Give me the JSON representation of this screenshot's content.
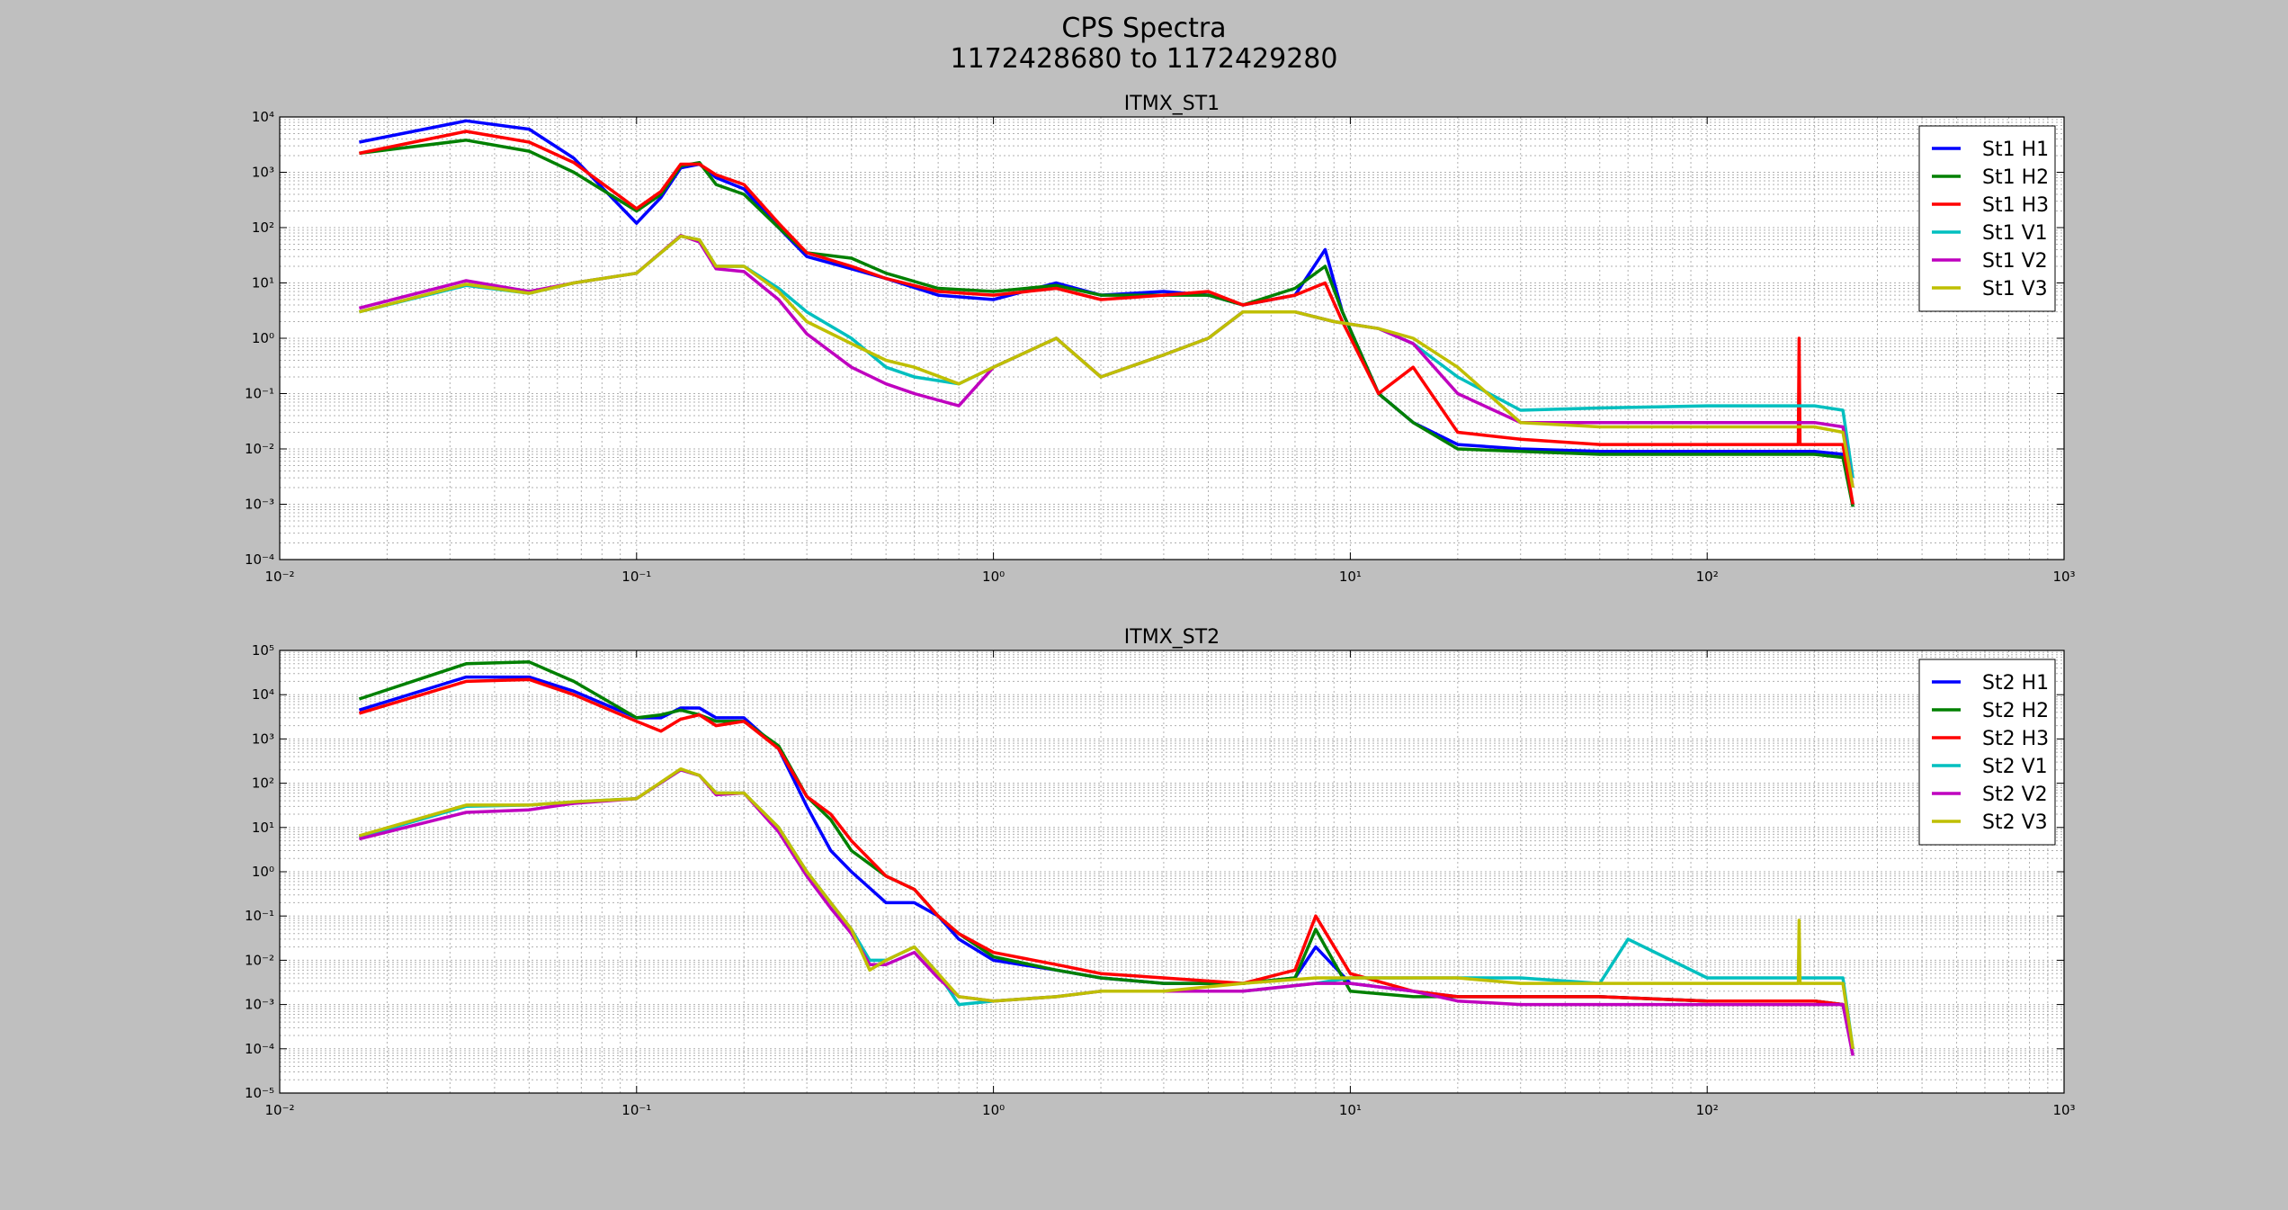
{
  "figure": {
    "title_line1": "CPS Spectra",
    "title_line2": "1172428680 to 1172429280"
  },
  "chart_data": [
    {
      "type": "line",
      "title": "ITMX_ST1",
      "xscale": "log",
      "yscale": "log",
      "xlim": [
        0.01,
        1000
      ],
      "ylim": [
        0.0001,
        10000
      ],
      "x_ticks": [
        "10⁻²",
        "10⁻¹",
        "10⁰",
        "10¹",
        "10²",
        "10³"
      ],
      "y_ticks": [
        "10⁴",
        "10³",
        "10²",
        "10¹",
        "10⁰",
        "10⁻¹",
        "10⁻²",
        "10⁻³",
        "10⁻⁴"
      ],
      "grid": true,
      "legend_position": "top-right",
      "series": [
        {
          "name": "St1 H1",
          "color": "#0000ff",
          "x": [
            0.0167,
            0.0333,
            0.05,
            0.0667,
            0.1,
            0.117,
            0.133,
            0.15,
            0.167,
            0.2,
            0.25,
            0.3,
            0.4,
            0.5,
            0.7,
            1.0,
            1.5,
            2.0,
            3.0,
            4.0,
            5.0,
            7.0,
            8.5,
            9.5,
            12.0,
            15.0,
            20.0,
            30.0,
            50.0,
            100.0,
            200.0,
            240.0,
            256.0
          ],
          "y": [
            3500,
            8500,
            6000,
            1800,
            120,
            350,
            1200,
            1400,
            800,
            500,
            100,
            30,
            18,
            12,
            6,
            5,
            10,
            6,
            7,
            6,
            4,
            6,
            40,
            3,
            0.1,
            0.03,
            0.012,
            0.01,
            0.009,
            0.009,
            0.009,
            0.008,
            0.001
          ]
        },
        {
          "name": "St1 H2",
          "color": "#008000",
          "x": [
            0.0167,
            0.0333,
            0.05,
            0.0667,
            0.1,
            0.117,
            0.133,
            0.15,
            0.167,
            0.2,
            0.25,
            0.3,
            0.4,
            0.5,
            0.7,
            1.0,
            1.5,
            2.0,
            3.0,
            4.0,
            5.0,
            7.0,
            8.5,
            9.5,
            12.0,
            15.0,
            20.0,
            30.0,
            50.0,
            100.0,
            200.0,
            240.0,
            256.0
          ],
          "y": [
            2200,
            3800,
            2400,
            1000,
            200,
            400,
            1300,
            1500,
            600,
            400,
            100,
            35,
            28,
            15,
            8,
            7,
            9,
            6,
            6,
            6,
            4,
            8,
            20,
            3,
            0.1,
            0.03,
            0.01,
            0.009,
            0.008,
            0.008,
            0.008,
            0.007,
            0.0009
          ]
        },
        {
          "name": "St1 H3",
          "color": "#ff0000",
          "x": [
            0.0167,
            0.0333,
            0.05,
            0.0667,
            0.1,
            0.117,
            0.133,
            0.15,
            0.167,
            0.2,
            0.25,
            0.3,
            0.4,
            0.5,
            0.7,
            1.0,
            1.5,
            2.0,
            3.0,
            4.0,
            5.0,
            7.0,
            8.5,
            9.5,
            12.0,
            15.0,
            20.0,
            30.0,
            50.0,
            100.0,
            180.0,
            181.0,
            182.0,
            240.0,
            256.0
          ],
          "y": [
            2200,
            5500,
            3500,
            1500,
            220,
            450,
            1400,
            1400,
            900,
            600,
            120,
            35,
            20,
            12,
            7,
            6,
            8,
            5,
            6,
            7,
            4,
            6,
            10,
            2,
            0.1,
            0.3,
            0.02,
            0.015,
            0.012,
            0.012,
            0.012,
            1.0,
            0.012,
            0.012,
            0.001
          ]
        },
        {
          "name": "St1 V1",
          "color": "#00bfbf",
          "x": [
            0.0167,
            0.0333,
            0.05,
            0.0667,
            0.1,
            0.133,
            0.15,
            0.167,
            0.2,
            0.25,
            0.3,
            0.4,
            0.5,
            0.6,
            0.8,
            1.0,
            1.5,
            2.0,
            3.0,
            4.0,
            5.0,
            7.0,
            9.0,
            12.0,
            15.0,
            20.0,
            30.0,
            50.0,
            100.0,
            200.0,
            240.0,
            256.0
          ],
          "y": [
            3.0,
            9.0,
            6.5,
            10,
            15,
            70,
            60,
            20,
            20,
            8,
            3,
            1,
            0.3,
            0.2,
            0.15,
            0.3,
            1.0,
            0.2,
            0.5,
            1.0,
            3.0,
            3.0,
            2.0,
            1.5,
            0.8,
            0.2,
            0.05,
            0.055,
            0.06,
            0.06,
            0.05,
            0.003
          ]
        },
        {
          "name": "St1 V2",
          "color": "#bf00bf",
          "x": [
            0.0167,
            0.0333,
            0.05,
            0.0667,
            0.1,
            0.133,
            0.15,
            0.167,
            0.2,
            0.25,
            0.3,
            0.4,
            0.5,
            0.6,
            0.8,
            1.0,
            1.5,
            2.0,
            3.0,
            4.0,
            5.0,
            7.0,
            9.0,
            12.0,
            15.0,
            20.0,
            30.0,
            50.0,
            100.0,
            200.0,
            240.0,
            256.0
          ],
          "y": [
            3.5,
            11,
            7.0,
            10,
            15,
            72,
            55,
            18,
            16,
            5,
            1.2,
            0.3,
            0.15,
            0.1,
            0.06,
            0.3,
            1.0,
            0.2,
            0.5,
            1.0,
            3.0,
            3.0,
            2.0,
            1.5,
            0.8,
            0.1,
            0.03,
            0.03,
            0.03,
            0.03,
            0.025,
            0.002
          ]
        },
        {
          "name": "St1 V3",
          "color": "#bfbf00",
          "x": [
            0.0167,
            0.0333,
            0.05,
            0.0667,
            0.1,
            0.133,
            0.15,
            0.167,
            0.2,
            0.25,
            0.3,
            0.4,
            0.5,
            0.6,
            0.8,
            1.0,
            1.5,
            2.0,
            3.0,
            4.0,
            5.0,
            7.0,
            9.0,
            12.0,
            15.0,
            20.0,
            30.0,
            50.0,
            100.0,
            200.0,
            240.0,
            256.0
          ],
          "y": [
            3.0,
            9.5,
            6.5,
            10,
            15,
            70,
            60,
            20,
            20,
            7,
            2,
            0.8,
            0.4,
            0.3,
            0.15,
            0.3,
            1.0,
            0.2,
            0.5,
            1.0,
            3.0,
            3.0,
            2.0,
            1.5,
            1.0,
            0.3,
            0.03,
            0.025,
            0.025,
            0.025,
            0.02,
            0.002
          ]
        }
      ]
    },
    {
      "type": "line",
      "title": "ITMX_ST2",
      "xscale": "log",
      "yscale": "log",
      "xlim": [
        0.01,
        1000
      ],
      "ylim": [
        1e-05,
        100000
      ],
      "x_ticks": [
        "10⁻²",
        "10⁻¹",
        "10⁰",
        "10¹",
        "10²",
        "10³"
      ],
      "y_ticks": [
        "10⁵",
        "10⁴",
        "10³",
        "10²",
        "10¹",
        "10⁰",
        "10⁻¹",
        "10⁻²",
        "10⁻³",
        "10⁻⁴",
        "10⁻⁵"
      ],
      "grid": true,
      "legend_position": "top-right",
      "series": [
        {
          "name": "St2 H1",
          "color": "#0000ff",
          "x": [
            0.0167,
            0.0333,
            0.05,
            0.0667,
            0.1,
            0.117,
            0.133,
            0.15,
            0.167,
            0.2,
            0.25,
            0.3,
            0.35,
            0.4,
            0.5,
            0.6,
            0.7,
            0.8,
            1.0,
            1.5,
            2.0,
            3.0,
            5.0,
            7.0,
            8.0,
            10.0,
            15.0,
            20.0,
            30.0,
            50.0,
            100.0,
            200.0,
            240.0,
            256.0
          ],
          "y": [
            4500,
            25000,
            25000,
            12000,
            3000,
            3000,
            5000,
            5000,
            3000,
            3000,
            600,
            30,
            3,
            1,
            0.2,
            0.2,
            0.1,
            0.03,
            0.01,
            0.006,
            0.004,
            0.003,
            0.003,
            0.004,
            0.02,
            0.003,
            0.002,
            0.0015,
            0.0015,
            0.0015,
            0.0012,
            0.0012,
            0.001,
            0.0001
          ]
        },
        {
          "name": "St2 H2",
          "color": "#008000",
          "x": [
            0.0167,
            0.0333,
            0.05,
            0.0667,
            0.1,
            0.117,
            0.133,
            0.15,
            0.167,
            0.2,
            0.25,
            0.3,
            0.35,
            0.4,
            0.5,
            0.6,
            0.7,
            0.8,
            1.0,
            1.5,
            2.0,
            3.0,
            5.0,
            7.0,
            8.0,
            10.0,
            15.0,
            20.0,
            30.0,
            50.0,
            100.0,
            200.0,
            240.0,
            256.0
          ],
          "y": [
            8000,
            50000,
            55000,
            20000,
            3000,
            3500,
            4500,
            3500,
            2500,
            2500,
            700,
            50,
            15,
            3,
            0.8,
            0.4,
            0.1,
            0.04,
            0.012,
            0.006,
            0.004,
            0.003,
            0.003,
            0.004,
            0.05,
            0.002,
            0.0015,
            0.0015,
            0.0015,
            0.0015,
            0.0012,
            0.0012,
            0.001,
            0.0001
          ]
        },
        {
          "name": "St2 H3",
          "color": "#ff0000",
          "x": [
            0.0167,
            0.0333,
            0.05,
            0.0667,
            0.1,
            0.117,
            0.133,
            0.15,
            0.167,
            0.2,
            0.25,
            0.3,
            0.35,
            0.4,
            0.5,
            0.6,
            0.7,
            0.8,
            1.0,
            1.5,
            2.0,
            3.0,
            5.0,
            7.0,
            8.0,
            10.0,
            15.0,
            20.0,
            30.0,
            50.0,
            100.0,
            200.0,
            240.0,
            256.0
          ],
          "y": [
            3800,
            20000,
            22000,
            10000,
            2500,
            1500,
            2800,
            3500,
            2000,
            2500,
            600,
            50,
            20,
            5,
            0.8,
            0.4,
            0.1,
            0.04,
            0.015,
            0.008,
            0.005,
            0.004,
            0.003,
            0.006,
            0.1,
            0.005,
            0.002,
            0.0015,
            0.0015,
            0.0015,
            0.0012,
            0.0012,
            0.001,
            0.0001
          ]
        },
        {
          "name": "St2 V1",
          "color": "#00bfbf",
          "x": [
            0.0167,
            0.0333,
            0.05,
            0.0667,
            0.1,
            0.133,
            0.15,
            0.167,
            0.2,
            0.25,
            0.3,
            0.35,
            0.4,
            0.45,
            0.5,
            0.6,
            0.7,
            0.8,
            1.0,
            1.5,
            2.0,
            3.0,
            5.0,
            8.0,
            10.0,
            15.0,
            20.0,
            30.0,
            50.0,
            60.0,
            100.0,
            200.0,
            240.0,
            256.0
          ],
          "y": [
            6.0,
            30,
            32,
            38,
            45,
            200,
            150,
            60,
            60,
            10,
            1,
            0.2,
            0.05,
            0.01,
            0.01,
            0.02,
            0.005,
            0.001,
            0.0012,
            0.0015,
            0.002,
            0.002,
            0.002,
            0.003,
            0.004,
            0.004,
            0.004,
            0.004,
            0.003,
            0.03,
            0.004,
            0.004,
            0.004,
            0.0001
          ]
        },
        {
          "name": "St2 V2",
          "color": "#bf00bf",
          "x": [
            0.0167,
            0.0333,
            0.05,
            0.0667,
            0.1,
            0.133,
            0.15,
            0.167,
            0.2,
            0.25,
            0.3,
            0.35,
            0.4,
            0.45,
            0.5,
            0.6,
            0.7,
            0.8,
            1.0,
            1.5,
            2.0,
            3.0,
            5.0,
            8.0,
            10.0,
            15.0,
            20.0,
            30.0,
            50.0,
            100.0,
            200.0,
            240.0,
            256.0
          ],
          "y": [
            5.5,
            22,
            25,
            35,
            45,
            200,
            150,
            55,
            60,
            8,
            0.8,
            0.15,
            0.04,
            0.008,
            0.008,
            0.015,
            0.004,
            0.0015,
            0.0012,
            0.0015,
            0.002,
            0.002,
            0.002,
            0.003,
            0.003,
            0.002,
            0.0012,
            0.001,
            0.001,
            0.001,
            0.001,
            0.001,
            7e-05
          ]
        },
        {
          "name": "St2 V3",
          "color": "#bfbf00",
          "x": [
            0.0167,
            0.0333,
            0.05,
            0.0667,
            0.1,
            0.133,
            0.15,
            0.167,
            0.2,
            0.25,
            0.3,
            0.35,
            0.4,
            0.45,
            0.5,
            0.6,
            0.7,
            0.8,
            1.0,
            1.5,
            2.0,
            3.0,
            5.0,
            8.0,
            10.0,
            15.0,
            20.0,
            30.0,
            50.0,
            100.0,
            180.0,
            181.0,
            182.0,
            200.0,
            240.0,
            256.0
          ],
          "y": [
            6.5,
            32,
            32,
            38,
            45,
            210,
            150,
            60,
            60,
            10,
            1,
            0.2,
            0.05,
            0.006,
            0.01,
            0.02,
            0.005,
            0.0015,
            0.0012,
            0.0015,
            0.002,
            0.002,
            0.003,
            0.004,
            0.004,
            0.004,
            0.004,
            0.003,
            0.003,
            0.003,
            0.003,
            0.08,
            0.003,
            0.003,
            0.003,
            0.0001
          ]
        }
      ]
    }
  ]
}
